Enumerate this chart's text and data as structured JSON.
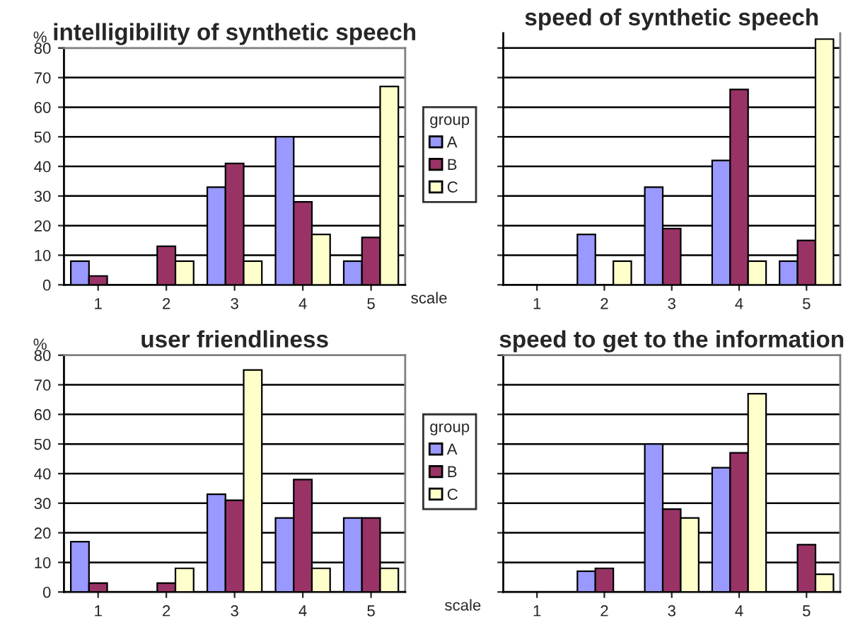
{
  "chart_data": [
    {
      "type": "bar",
      "title": "intelligibility of synthetic speech",
      "ylabel": "%",
      "xlabel": "scale",
      "legend_title": "group",
      "categories": [
        "1",
        "2",
        "3",
        "4",
        "5"
      ],
      "series": [
        {
          "name": "A",
          "color": "#9999ff",
          "values": [
            8,
            null,
            33,
            50,
            8
          ]
        },
        {
          "name": "B",
          "color": "#993366",
          "values": [
            3,
            13,
            41,
            28,
            16
          ]
        },
        {
          "name": "C",
          "color": "#ffffcc",
          "values": [
            null,
            8,
            8,
            17,
            67
          ]
        }
      ],
      "ylim": [
        0,
        80
      ],
      "yticks": [
        0,
        10,
        20,
        30,
        40,
        50,
        60,
        70,
        80
      ],
      "grid": "y",
      "legend": "right"
    },
    {
      "type": "bar",
      "title": "speed of synthetic speech",
      "categories": [
        "1",
        "2",
        "3",
        "4",
        "5"
      ],
      "series": [
        {
          "color": "#9999ff",
          "values": [
            null,
            17,
            33,
            42,
            8
          ]
        },
        {
          "color": "#993366",
          "values": [
            null,
            null,
            19,
            66,
            15
          ]
        },
        {
          "color": "#ffffcc",
          "values": [
            null,
            8,
            null,
            8,
            83
          ]
        }
      ],
      "ylim": [
        0,
        85
      ],
      "yticks": [
        0,
        10,
        20,
        30,
        40,
        50,
        60,
        70,
        80
      ],
      "grid": "y",
      "tick_labels": "x"
    },
    {
      "type": "bar",
      "title": "user friendliness",
      "ylabel": "%",
      "legend_title": "group",
      "categories": [
        "1",
        "2",
        "3",
        "4",
        "5"
      ],
      "series": [
        {
          "name": "A",
          "color": "#9999ff",
          "values": [
            17,
            null,
            33,
            25,
            25
          ]
        },
        {
          "name": "B",
          "color": "#993366",
          "values": [
            3,
            3,
            31,
            38,
            25
          ]
        },
        {
          "name": "C",
          "color": "#ffffcc",
          "values": [
            null,
            8,
            75,
            8,
            8
          ]
        }
      ],
      "ylim": [
        0,
        80
      ],
      "yticks": [
        0,
        10,
        20,
        30,
        40,
        50,
        60,
        70,
        80
      ],
      "grid": "y",
      "legend": "right"
    },
    {
      "type": "bar",
      "title": "speed to get to the information",
      "xlabel": "scale",
      "categories": [
        "1",
        "2",
        "3",
        "4",
        "5"
      ],
      "series": [
        {
          "color": "#9999ff",
          "values": [
            null,
            7,
            50,
            42,
            null
          ]
        },
        {
          "color": "#993366",
          "values": [
            null,
            8,
            28,
            47,
            16
          ]
        },
        {
          "color": "#ffffcc",
          "values": [
            null,
            null,
            25,
            67,
            6
          ]
        }
      ],
      "ylim": [
        0,
        80
      ],
      "yticks": [
        0,
        10,
        20,
        30,
        40,
        50,
        60,
        70,
        80
      ],
      "grid": "y",
      "tick_labels": "x"
    }
  ]
}
